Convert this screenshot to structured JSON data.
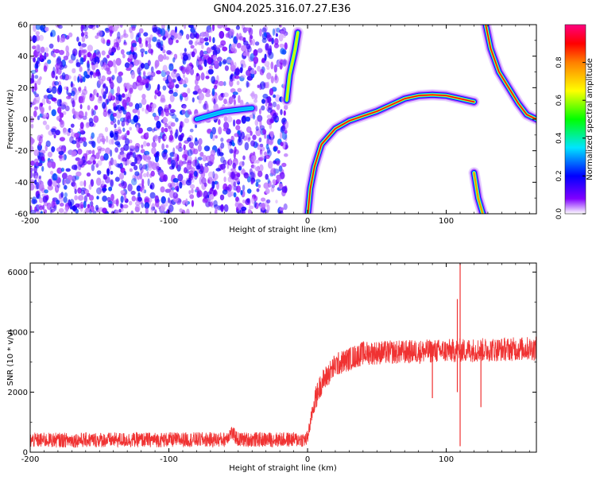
{
  "title": "GN04.2025.316.07.27.E36",
  "chart_data": [
    {
      "type": "heatmap",
      "xlabel": "Height of straight line (km)",
      "ylabel": "Frequency (Hz)",
      "xlim": [
        -200,
        165
      ],
      "ylim": [
        -60,
        60
      ],
      "xticks": [
        -200,
        -100,
        0,
        100
      ],
      "yticks": [
        -60,
        -40,
        -20,
        0,
        20,
        40,
        60
      ],
      "colorbar": {
        "label": "Normalized spectral amplitude",
        "range": [
          0,
          1
        ],
        "ticks": [
          0.0,
          0.2,
          0.4,
          0.6,
          0.8
        ],
        "colormap": [
          "#ffffff",
          "#8000ff",
          "#0000ff",
          "#00e5ff",
          "#00ff00",
          "#ffff00",
          "#ff8000",
          "#ff0000",
          "#ff0080"
        ]
      },
      "noise_region": {
        "x_range": [
          -200,
          -15
        ],
        "amplitude_range": [
          0.05,
          0.3
        ]
      },
      "traces": [
        {
          "name": "main-arc",
          "amplitude": 0.9,
          "points": [
            [
              0,
              -62
            ],
            [
              2,
              -44
            ],
            [
              5,
              -30
            ],
            [
              10,
              -16
            ],
            [
              20,
              -6
            ],
            [
              30,
              -1
            ],
            [
              40,
              2
            ],
            [
              50,
              5
            ],
            [
              60,
              9
            ],
            [
              70,
              13
            ],
            [
              80,
              15
            ],
            [
              90,
              15.5
            ],
            [
              100,
              15
            ],
            [
              110,
              13
            ],
            [
              120,
              11
            ]
          ]
        },
        {
          "name": "near-zero-line",
          "amplitude": 0.35,
          "points": [
            [
              -80,
              0
            ],
            [
              -60,
              5
            ],
            [
              -50,
              6
            ],
            [
              -40,
              7
            ]
          ]
        },
        {
          "name": "left-lobe",
          "amplitude": 0.6,
          "points": [
            [
              -15,
              12
            ],
            [
              -13,
              28
            ],
            [
              -9,
              44
            ],
            [
              -7,
              55
            ]
          ]
        },
        {
          "name": "right-curve",
          "amplitude": 0.9,
          "points": [
            [
              128,
              62
            ],
            [
              132,
              45
            ],
            [
              138,
              30
            ],
            [
              145,
              20
            ],
            [
              152,
              10
            ],
            [
              158,
              3
            ],
            [
              165,
              0
            ]
          ]
        },
        {
          "name": "right-low",
          "amplitude": 0.75,
          "points": [
            [
              120,
              -34
            ],
            [
              123,
              -50
            ],
            [
              127,
              -62
            ]
          ]
        }
      ]
    },
    {
      "type": "line",
      "xlabel": "Height of straight line (km)",
      "ylabel": "SNR (10 * v/v)",
      "xlim": [
        -200,
        165
      ],
      "ylim": [
        0,
        6300
      ],
      "xticks": [
        -200,
        -100,
        0,
        100
      ],
      "yticks": [
        0,
        2000,
        4000,
        6000
      ],
      "color": "#f03232",
      "envelope": [
        [
          -200,
          400
        ],
        [
          -60,
          420
        ],
        [
          -55,
          650
        ],
        [
          -50,
          420
        ],
        [
          -1,
          420
        ],
        [
          0,
          500
        ],
        [
          5,
          1700
        ],
        [
          10,
          2300
        ],
        [
          20,
          2900
        ],
        [
          40,
          3300
        ],
        [
          80,
          3350
        ],
        [
          160,
          3450
        ]
      ],
      "noise_amplitude": 250,
      "spikes": [
        {
          "x": 90,
          "low": 1800,
          "high": 3500
        },
        {
          "x": 108,
          "low": 2000,
          "high": 5100
        },
        {
          "x": 110,
          "low": 200,
          "high": 6300
        },
        {
          "x": 125,
          "low": 1500,
          "high": 3500
        }
      ]
    }
  ]
}
